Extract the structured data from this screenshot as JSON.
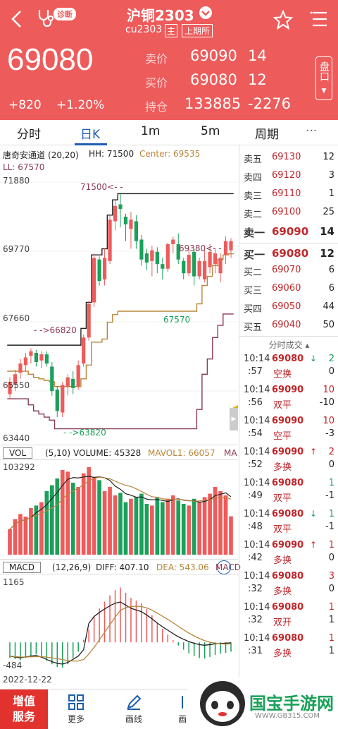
{
  "header": {
    "title": "沪铜2303",
    "subtitle_code": "cu2303",
    "badge_main": "主",
    "badge_exchange": "上期所",
    "diag_label": "诊断",
    "price": "69080",
    "change": "+820",
    "change_pct": "+1.20%",
    "ask_label": "卖价",
    "ask_price": "69090",
    "ask_vol": "14",
    "bid_label": "买价",
    "bid_price": "69080",
    "bid_vol": "12",
    "oi_label": "持仓",
    "oi_value": "133885",
    "oi_change": "-2276",
    "side_button": "盘口"
  },
  "tabs": [
    "分时",
    "日K",
    "1m",
    "5m",
    "周期",
    "···"
  ],
  "kline": {
    "indicator": "唐奇安通道",
    "params": "(20,20)",
    "hh": "HH: 71500",
    "center": "Center: 69535",
    "ll": "LL: 67570",
    "y_labels": [
      "71880",
      "69770",
      "67660",
      "65550",
      "63440"
    ],
    "ann_high": "71500<- -",
    "ann_low": "- ->63820",
    "ann_mid": "- ->66820",
    "ann_right": "69380<- -",
    "ann_67570": "67570"
  },
  "vol": {
    "label": "VOL",
    "params": "(5,10)",
    "volume": "VOLUME: 45328",
    "mavol1": "MAVOL1: 66057",
    "mavol2": "MA",
    "y_top": "103292"
  },
  "macd": {
    "label": "MACD",
    "params": "(12,26,9)",
    "diff": "DIFF: 407.10",
    "dea": "DEA: 543.06",
    "macd": "MACD",
    "y_top": "1165",
    "y_bottom": "-484",
    "date": "2022-12-22"
  },
  "orderbook": [
    {
      "label": "卖五",
      "price": "69130",
      "vol": "12"
    },
    {
      "label": "卖四",
      "price": "69120",
      "vol": "3"
    },
    {
      "label": "卖三",
      "price": "69110",
      "vol": "1"
    },
    {
      "label": "卖二",
      "price": "69100",
      "vol": "25"
    },
    {
      "label": "卖一",
      "price": "69090",
      "vol": "14"
    },
    {
      "label": "买一",
      "price": "69080",
      "vol": "12"
    },
    {
      "label": "买二",
      "price": "69070",
      "vol": "6"
    },
    {
      "label": "买三",
      "price": "69060",
      "vol": "6"
    },
    {
      "label": "买四",
      "price": "69050",
      "vol": "44"
    },
    {
      "label": "买五",
      "price": "69040",
      "vol": "50"
    }
  ],
  "trades_title": "分时成交",
  "trades": [
    {
      "t1": "10:14",
      "t2": ":57",
      "p": "69080",
      "k": "空换",
      "ar": "↓",
      "v1": "2",
      "v2": "0",
      "up": false
    },
    {
      "t1": "10:14",
      "t2": ":56",
      "p": "69090",
      "k": "双平",
      "ar": "",
      "v1": "10",
      "v2": "-10",
      "up": true
    },
    {
      "t1": "10:14",
      "t2": ":54",
      "p": "69090",
      "k": "空平",
      "ar": "",
      "v1": "10",
      "v2": "-3",
      "up": true
    },
    {
      "t1": "10:14",
      "t2": ":52",
      "p": "69090",
      "k": "多换",
      "ar": "↑",
      "v1": "2",
      "v2": "0",
      "up": true
    },
    {
      "t1": "10:14",
      "t2": ":49",
      "p": "69080",
      "k": "双平",
      "ar": "",
      "v1": "1",
      "v2": "-1",
      "up": false
    },
    {
      "t1": "10:14",
      "t2": ":48",
      "p": "69080",
      "k": "双平",
      "ar": "↓",
      "v1": "1",
      "v2": "-1",
      "up": false
    },
    {
      "t1": "10:14",
      "t2": ":42",
      "p": "69090",
      "k": "多换",
      "ar": "↑",
      "v1": "1",
      "v2": "0",
      "up": true
    },
    {
      "t1": "10:14",
      "t2": ":32",
      "p": "69080",
      "k": "多换",
      "ar": "",
      "v1": "3",
      "v2": "0",
      "up": true
    },
    {
      "t1": "10:14",
      "t2": ":32",
      "p": "69080",
      "k": "双开",
      "ar": "",
      "v1": "1",
      "v2": "1",
      "up": true
    },
    {
      "t1": "10:14",
      "t2": ":31",
      "p": "69080",
      "k": "多换",
      "ar": "",
      "v1": "1",
      "v2": "1",
      "up": true
    }
  ],
  "bottom": {
    "promo1": "增值",
    "promo2": "服务",
    "more": "更多",
    "draw": "画线",
    "misc": "画"
  },
  "watermark": "国宝手游网",
  "watermark_url": "WWW.GB315.COM",
  "colors": {
    "up": "#ee5b5b",
    "down": "#1aa05a",
    "header": "#ee5b5b",
    "accent": "#1f5fae"
  },
  "chart_data": {
    "type": "candlestick",
    "ylim": [
      63440,
      71880
    ],
    "candles": [
      [
        64950,
        65350,
        64800,
        65500
      ],
      [
        65250,
        65600,
        65050,
        65750
      ],
      [
        65650,
        65950,
        65450,
        66100
      ],
      [
        65900,
        66150,
        65700,
        66300
      ],
      [
        66200,
        66350,
        65950,
        66450
      ],
      [
        66300,
        66000,
        65850,
        66400
      ],
      [
        66050,
        66250,
        65800,
        66350
      ],
      [
        66250,
        65950,
        65850,
        66350
      ],
      [
        65850,
        65050,
        64900,
        66000
      ],
      [
        65100,
        64400,
        64200,
        65200
      ],
      [
        64350,
        65250,
        64200,
        65350
      ],
      [
        65200,
        65500,
        64900,
        65600
      ],
      [
        65450,
        65150,
        64950,
        65700
      ],
      [
        65200,
        65900,
        65100,
        66050
      ],
      [
        65950,
        66800,
        65850,
        66900
      ],
      [
        66800,
        67900,
        66700,
        68000
      ],
      [
        67950,
        69400,
        67800,
        69550
      ],
      [
        69350,
        68650,
        68500,
        69450
      ],
      [
        68700,
        69400,
        68500,
        69700
      ],
      [
        69300,
        70650,
        69200,
        70800
      ],
      [
        70600,
        71100,
        70300,
        71300
      ],
      [
        71150,
        71000,
        70400,
        71500
      ],
      [
        70750,
        70500,
        69950,
        70850
      ],
      [
        70350,
        70650,
        69700,
        70900
      ],
      [
        70600,
        69950,
        69700,
        70800
      ],
      [
        70000,
        69350,
        69150,
        70150
      ],
      [
        69550,
        69250,
        69000,
        69700
      ],
      [
        69300,
        69650,
        68800,
        69800
      ],
      [
        69600,
        69200,
        68900,
        69750
      ],
      [
        69200,
        69050,
        68700,
        69400
      ],
      [
        69050,
        69850,
        68950,
        69900
      ],
      [
        69850,
        70000,
        69550,
        70100
      ],
      [
        69850,
        69350,
        69200,
        70200
      ],
      [
        69300,
        68900,
        68700,
        69400
      ],
      [
        68900,
        69500,
        68800,
        69700
      ],
      [
        69600,
        68800,
        68500,
        69700
      ],
      [
        68800,
        69300,
        68700,
        69400
      ],
      [
        68700,
        69300,
        68600,
        69650
      ],
      [
        69100,
        69600,
        68900,
        69850
      ],
      [
        69200,
        69550,
        68900,
        69700
      ],
      [
        68900,
        69400,
        68600,
        69550
      ],
      [
        69500,
        69950,
        69200,
        70100
      ],
      [
        69650,
        69950,
        69400,
        70050
      ]
    ],
    "upper": [
      66550,
      66550,
      66550,
      66550,
      66550,
      66550,
      66550,
      66550,
      66550,
      66550,
      66550,
      66550,
      66550,
      66550,
      67100,
      67950,
      69500,
      69500,
      69700,
      70800,
      71300,
      71500,
      71500,
      71500,
      71500,
      71500,
      71500,
      71500,
      71500,
      71500,
      71500,
      71500,
      71500,
      71500,
      71500,
      71500,
      71500,
      71500,
      71500,
      71500,
      71500,
      71500,
      71500
    ],
    "lower": [
      64800,
      64800,
      64800,
      64800,
      64600,
      64400,
      64300,
      64200,
      64100,
      63820,
      63820,
      63820,
      63820,
      63820,
      63820,
      63820,
      63820,
      63820,
      63820,
      63820,
      63820,
      63820,
      63820,
      63820,
      63820,
      63820,
      63820,
      63820,
      63820,
      63820,
      63820,
      63820,
      63820,
      63820,
      63820,
      63820,
      64450,
      65600,
      66100,
      66800,
      67200,
      67570,
      67570
    ],
    "center": [
      65700,
      65700,
      65700,
      65700,
      65600,
      65500,
      65450,
      65400,
      65350,
      65200,
      65200,
      65200,
      65200,
      65200,
      65450,
      65900,
      66650,
      66650,
      66750,
      67300,
      67550,
      67660,
      67660,
      67660,
      67660,
      67660,
      67660,
      67660,
      67660,
      67660,
      67660,
      67660,
      67660,
      67660,
      67660,
      67660,
      67900,
      68500,
      68800,
      69150,
      69350,
      69500,
      69535
    ],
    "volume": [
      30000,
      42000,
      48000,
      45000,
      55000,
      58000,
      62000,
      75000,
      82000,
      90000,
      100000,
      98000,
      85000,
      80000,
      96000,
      103292,
      92000,
      88000,
      75000,
      80000,
      70000,
      73000,
      62000,
      66000,
      68000,
      72000,
      60000,
      58000,
      68000,
      62000,
      66000,
      70000,
      64000,
      60000,
      58000,
      66000,
      62000,
      68000,
      72000,
      80000,
      75000,
      70000,
      45328
    ],
    "macd_hist": [
      -300,
      -320,
      -340,
      -300,
      -260,
      -230,
      -280,
      -350,
      -420,
      -470,
      -484,
      -420,
      -300,
      -180,
      50,
      250,
      500,
      650,
      780,
      900,
      1000,
      1050,
      950,
      850,
      800,
      750,
      640,
      520,
      380,
      260,
      150,
      40,
      -60,
      -140,
      -210,
      -260,
      -300,
      -310,
      -280,
      -240,
      -220,
      -200,
      -180
    ]
  }
}
